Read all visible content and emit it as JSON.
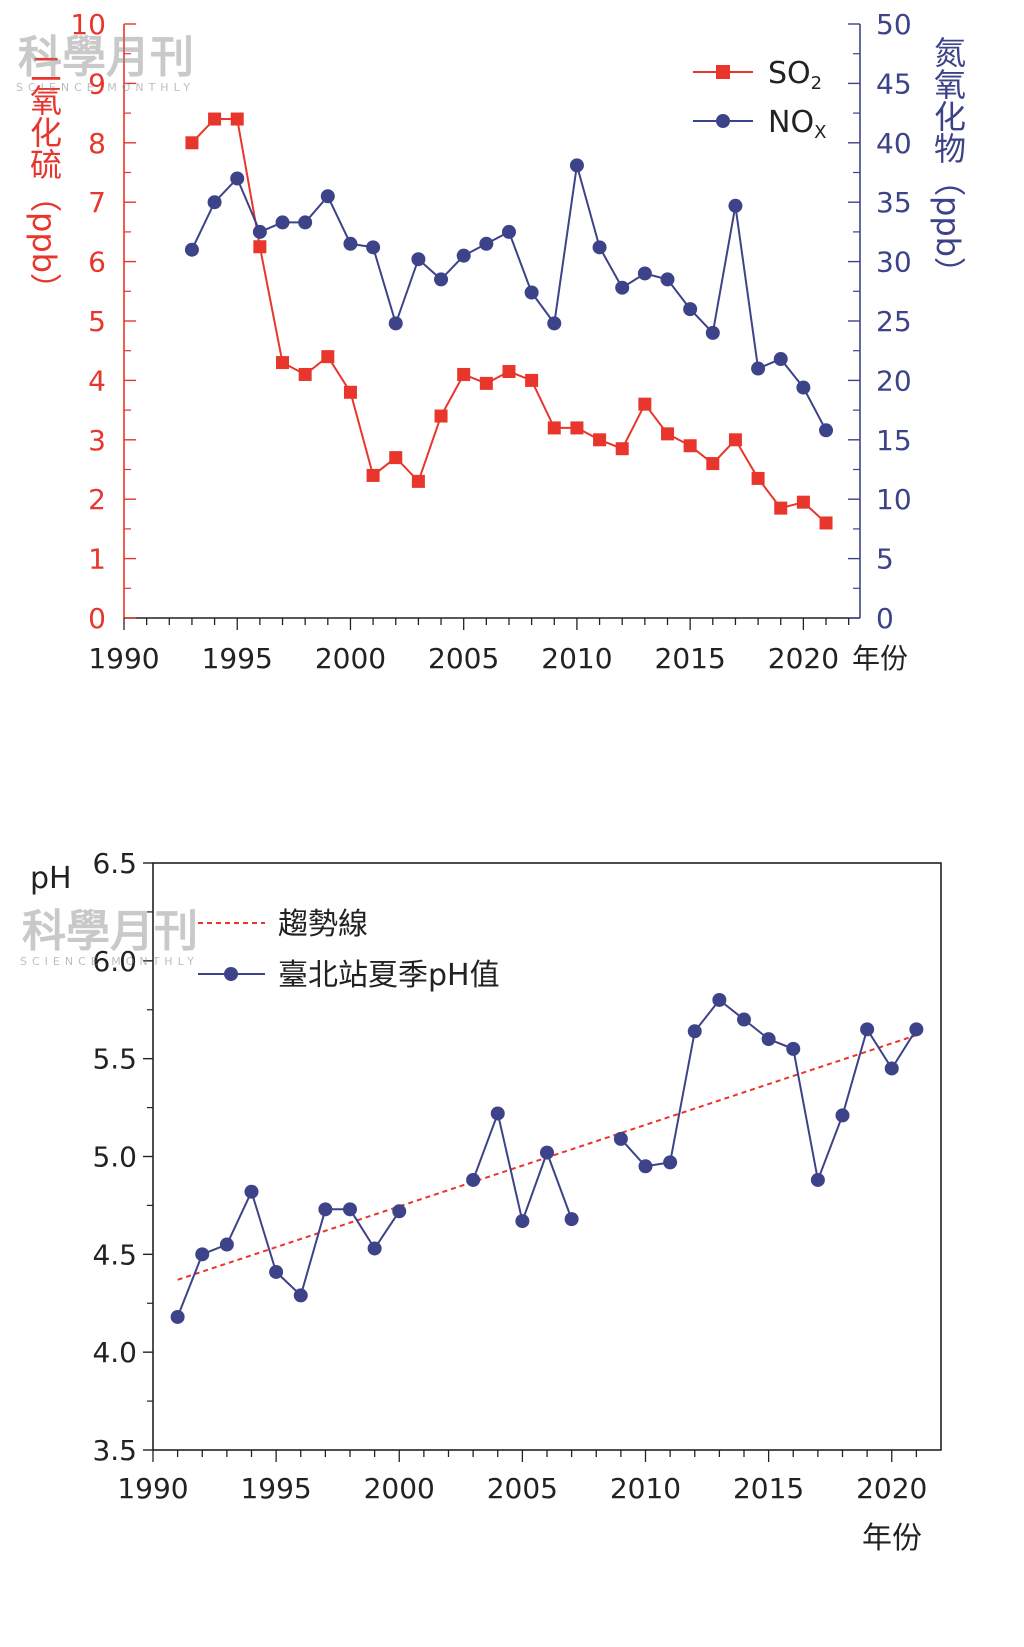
{
  "watermarks": [
    {
      "name": "科學月刊",
      "sub": "SCIENCE MONTHLY"
    },
    {
      "name": "科學月刊",
      "sub": "SCIENCE MONTHLY"
    }
  ],
  "chart_data": [
    {
      "type": "line",
      "xlabel": "年份",
      "ylabel_left": "二氧化硫（ppb）",
      "ylabel_right": "氮氧化物（ppb）",
      "xlim": [
        1990,
        2022.5
      ],
      "xticks": [
        1990,
        1995,
        2000,
        2005,
        2010,
        2015,
        2020
      ],
      "ylim_left": [
        0,
        10
      ],
      "yticks_left": [
        0,
        1,
        2,
        3,
        4,
        5,
        6,
        7,
        8,
        9,
        10
      ],
      "ylim_right": [
        0,
        50
      ],
      "yticks_right": [
        0,
        5,
        10,
        15,
        20,
        25,
        30,
        35,
        40,
        45,
        50
      ],
      "legend_position": "top-right",
      "colors": {
        "so2": "#e8362d",
        "nox": "#3d4388"
      },
      "series": [
        {
          "name": "SO",
          "subscript": "2",
          "axis": "left",
          "marker": "square",
          "x": [
            1993,
            1994,
            1995,
            1996,
            1997,
            1998,
            1999,
            2000,
            2001,
            2002,
            2003,
            2004,
            2005,
            2006,
            2007,
            2008,
            2009,
            2010,
            2011,
            2012,
            2013,
            2014,
            2015,
            2016,
            2017,
            2018,
            2019,
            2020,
            2021
          ],
          "y": [
            8.0,
            8.4,
            8.4,
            6.25,
            4.3,
            4.1,
            4.4,
            3.8,
            2.4,
            2.7,
            2.3,
            3.4,
            4.1,
            3.95,
            4.15,
            4.0,
            3.2,
            3.2,
            3.0,
            2.85,
            3.6,
            3.1,
            2.9,
            2.6,
            3.0,
            2.35,
            1.85,
            1.95,
            1.6
          ]
        },
        {
          "name": "NO",
          "subscript": "X",
          "axis": "right",
          "marker": "circle",
          "x": [
            1993,
            1994,
            1995,
            1996,
            1997,
            1998,
            1999,
            2000,
            2001,
            2002,
            2003,
            2004,
            2005,
            2006,
            2007,
            2008,
            2009,
            2010,
            2011,
            2012,
            2013,
            2014,
            2015,
            2016,
            2017,
            2018,
            2019,
            2020,
            2021
          ],
          "y": [
            31,
            35,
            37,
            32.5,
            33.3,
            33.3,
            35.5,
            31.5,
            31.2,
            24.8,
            30.2,
            28.5,
            30.5,
            31.5,
            32.5,
            27.4,
            24.8,
            38.1,
            31.2,
            27.8,
            29,
            28.5,
            26,
            24,
            34.7,
            21,
            21.8,
            19.4,
            15.8
          ]
        }
      ]
    },
    {
      "type": "line",
      "xlabel": "年份",
      "ylabel": "pH",
      "xlim": [
        1990,
        2022
      ],
      "xticks": [
        1990,
        1995,
        2000,
        2005,
        2010,
        2015,
        2020
      ],
      "ylim": [
        3.5,
        6.5
      ],
      "yticks": [
        3.5,
        4.0,
        4.5,
        5.0,
        5.5,
        6.0,
        6.5
      ],
      "legend_position": "top-left",
      "colors": {
        "trend": "#e8362d",
        "ph": "#3d4388"
      },
      "trend": {
        "name": "趨勢線",
        "x": [
          1991,
          2021
        ],
        "y": [
          4.37,
          5.62
        ]
      },
      "series": [
        {
          "name": "臺北站夏季pH值",
          "segments": [
            {
              "x": [
                1991,
                1992,
                1993,
                1994,
                1995,
                1996,
                1997,
                1998,
                1999,
                2000
              ],
              "y": [
                4.18,
                4.5,
                4.55,
                4.82,
                4.41,
                4.29,
                4.73,
                4.73,
                4.53,
                4.72
              ]
            },
            {
              "x": [
                2003,
                2004,
                2005,
                2006,
                2007
              ],
              "y": [
                4.88,
                5.22,
                4.67,
                5.02,
                4.68
              ]
            },
            {
              "x": [
                2009,
                2010,
                2011,
                2012,
                2013,
                2014,
                2015,
                2016,
                2017,
                2018,
                2019,
                2020,
                2021
              ],
              "y": [
                5.09,
                4.95,
                4.97,
                5.64,
                5.8,
                5.7,
                5.6,
                5.55,
                4.88,
                5.21,
                5.65,
                5.45,
                5.65
              ]
            }
          ]
        }
      ]
    }
  ]
}
